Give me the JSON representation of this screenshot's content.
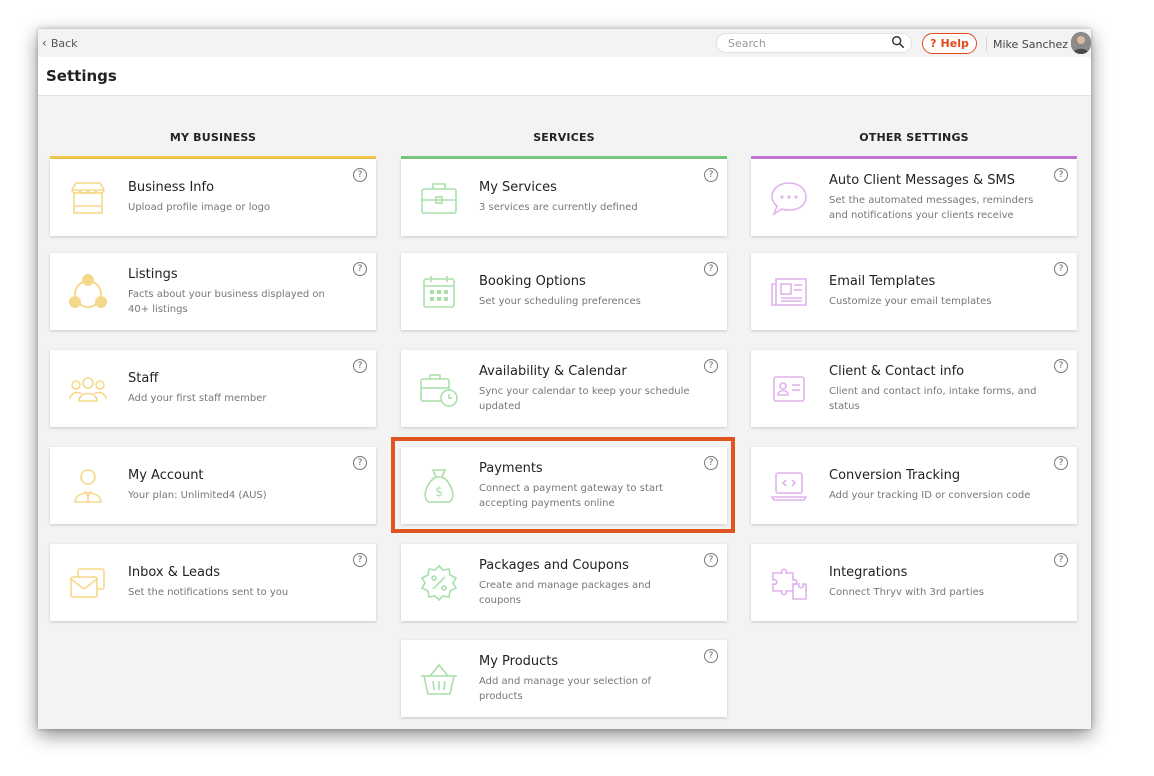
{
  "topbar": {
    "back_label": "Back",
    "search_placeholder": "Search",
    "help_label": "Help",
    "user_name": "Mike Sanchez"
  },
  "page_title": "Settings",
  "colors": {
    "my_business": "#f2c94c",
    "services": "#79c97b",
    "other_settings": "#c175d4",
    "highlight": "#e0541f",
    "help": "#e24a1a"
  },
  "columns": [
    {
      "title": "MY BUSINESS",
      "cards": [
        {
          "title": "Business Info",
          "desc": "Upload profile image or logo",
          "icon": "storefront-icon"
        },
        {
          "title": "Listings",
          "desc": "Facts about your business displayed on 40+ listings",
          "icon": "network-icon"
        },
        {
          "title": "Staff",
          "desc": "Add your first staff member",
          "icon": "people-group-icon"
        },
        {
          "title": "My Account",
          "desc": "Your plan: Unlimited4 (AUS)",
          "icon": "user-account-icon"
        },
        {
          "title": "Inbox & Leads",
          "desc": "Set the notifications sent to you",
          "icon": "inbox-icon"
        }
      ]
    },
    {
      "title": "SERVICES",
      "cards": [
        {
          "title": "My Services",
          "desc": "3 services are currently defined",
          "icon": "briefcase-icon"
        },
        {
          "title": "Booking Options",
          "desc": "Set your scheduling preferences",
          "icon": "calendar-icon"
        },
        {
          "title": "Availability & Calendar",
          "desc": "Sync your calendar to keep your schedule updated",
          "icon": "briefcase-clock-icon"
        },
        {
          "title": "Payments",
          "desc": "Connect a payment gateway to start accepting payments online",
          "icon": "money-bag-icon"
        },
        {
          "title": "Packages and Coupons",
          "desc": "Create and manage packages and coupons",
          "icon": "discount-badge-icon"
        },
        {
          "title": "My Products",
          "desc": "Add and manage your selection of products",
          "icon": "basket-icon"
        }
      ]
    },
    {
      "title": "OTHER SETTINGS",
      "cards": [
        {
          "title": "Auto Client Messages & SMS",
          "desc": "Set the automated messages, reminders and notifications your clients receive",
          "icon": "chat-bubble-icon"
        },
        {
          "title": "Email Templates",
          "desc": "Customize your email templates",
          "icon": "newspaper-icon"
        },
        {
          "title": "Client & Contact info",
          "desc": "Client and contact info, intake forms, and status",
          "icon": "contact-card-icon"
        },
        {
          "title": "Conversion Tracking",
          "desc": "Add your tracking ID or conversion code",
          "icon": "laptop-code-icon"
        },
        {
          "title": "Integrations",
          "desc": "Connect Thryv with 3rd parties",
          "icon": "puzzle-icon"
        }
      ]
    }
  ]
}
